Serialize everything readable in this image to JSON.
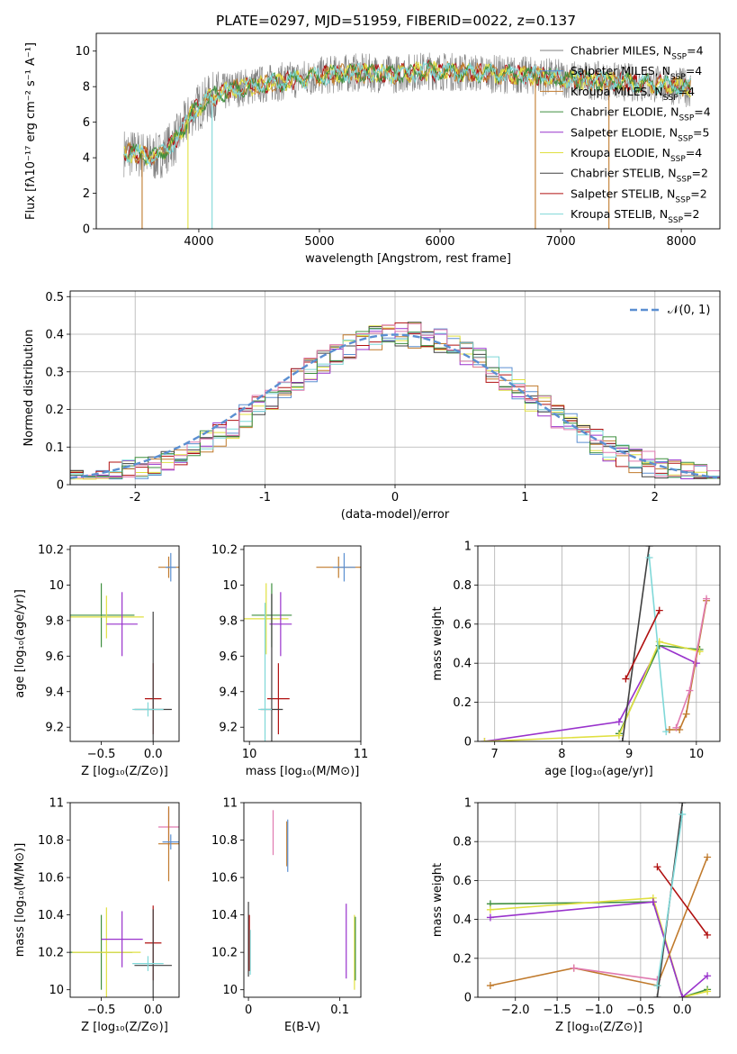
{
  "chart_data": [
    {
      "id": "spectrum",
      "type": "line",
      "title": "PLATE=0297, MJD=51959, FIBERID=0022, z=0.137",
      "xlabel": "wavelength [Angstrom, rest frame]",
      "ylabel": "Flux [fλ10⁻¹⁷ erg cm⁻² s⁻¹ A⁻¹]",
      "xlim": [
        3150,
        8320
      ],
      "ylim": [
        0,
        11
      ],
      "xticks": [
        4000,
        5000,
        6000,
        7000,
        8000
      ],
      "yticks": [
        0,
        2,
        4,
        6,
        8,
        10
      ],
      "legend_position": "top-right",
      "grid": false,
      "legend": [
        {
          "label": "Chabrier MILES, N_SSP=4",
          "color": "#7f7f7f"
        },
        {
          "label": "Salpeter MILES, N_SSP=4",
          "color": "#5b8fd1"
        },
        {
          "label": "Kroupa MILES, N_SSP=4",
          "color": "#c07a2c"
        },
        {
          "label": "Chabrier ELODIE, N_SSP=4",
          "color": "#3f8f3f"
        },
        {
          "label": "Salpeter ELODIE, N_SSP=5",
          "color": "#9932cc"
        },
        {
          "label": "Kroupa ELODIE, N_SSP=4",
          "color": "#e0e040"
        },
        {
          "label": "Chabrier STELIB, N_SSP=2",
          "color": "#404040"
        },
        {
          "label": "Salpeter STELIB, N_SSP=2",
          "color": "#b01010"
        },
        {
          "label": "Kroupa STELIB, N_SSP=2",
          "color": "#7fd8d8"
        }
      ],
      "continuum": {
        "x": [
          3380,
          3500,
          3650,
          3800,
          3950,
          4100,
          4300,
          4500,
          4700,
          5000,
          5300,
          5600,
          5900,
          6200,
          6500,
          6800,
          7100,
          7400,
          7700,
          8000,
          8080
        ],
        "y": [
          4.3,
          4.2,
          4.0,
          4.9,
          6.6,
          7.4,
          7.9,
          8.1,
          8.3,
          8.6,
          8.8,
          8.7,
          8.9,
          8.8,
          8.7,
          8.6,
          8.4,
          8.3,
          8.2,
          8.0,
          7.9
        ]
      },
      "absorption_lines": [
        {
          "x": 3530,
          "y": 0.0,
          "color": "#c07a2c"
        },
        {
          "x": 3910,
          "y": 0.0,
          "color": "#e0e040"
        },
        {
          "x": 4110,
          "y": 0.0,
          "color": "#7fd8d8"
        },
        {
          "x": 6790,
          "y": 0.0,
          "color": "#c07a2c"
        },
        {
          "x": 7400,
          "y": 0.0,
          "color": "#c07a2c"
        }
      ]
    },
    {
      "id": "residuals",
      "type": "line",
      "xlabel": "(data-model)/error",
      "ylabel": "Normed distribution",
      "xlim": [
        -2.5,
        2.5
      ],
      "ylim": [
        0,
        0.515
      ],
      "xticks": [
        -2,
        -1,
        0,
        1,
        2
      ],
      "yticks": [
        0.0,
        0.1,
        0.2,
        0.3,
        0.4,
        0.5
      ],
      "legend_position": "top-right",
      "grid": true,
      "legend": [
        {
          "label": "𝒩(0, 1)",
          "color": "#5b8fd1"
        }
      ],
      "hist_colors": [
        "#5b8fd1",
        "#c07a2c",
        "#e0e040",
        "#9932cc",
        "#b01010",
        "#404040",
        "#7fd8d8",
        "#3f8f3f",
        "#e07ab0"
      ]
    },
    {
      "id": "age_vs_Z",
      "type": "scatter",
      "xlabel": "Z [log₁₀(Z/Z⊙)]",
      "ylabel": "age [log₁₀(age/yr)]",
      "xlim": [
        -0.8,
        0.25
      ],
      "ylim": [
        9.12,
        10.22
      ],
      "xticks": [
        -0.5,
        0.0
      ],
      "xticklabels": [
        "−0.5",
        "0.0"
      ],
      "yticks": [
        9.2,
        9.4,
        9.6,
        9.8,
        10.0,
        10.2
      ],
      "grid": false,
      "points": [
        {
          "x": 0.15,
          "y": 10.1,
          "xerr": 0.1,
          "yerr": 0.06,
          "color": "#c07a2c"
        },
        {
          "x": 0.17,
          "y": 10.1,
          "xerr": 0.05,
          "yerr": 0.08,
          "color": "#5b8fd1"
        },
        {
          "x": -0.5,
          "y": 9.83,
          "xerr": 0.32,
          "yerr": 0.18,
          "color": "#3f8f3f"
        },
        {
          "x": -0.45,
          "y": 9.82,
          "xerr": 0.36,
          "yerr": 0.12,
          "color": "#e0e040"
        },
        {
          "x": -0.3,
          "y": 9.78,
          "xerr": 0.15,
          "yerr": 0.18,
          "color": "#9932cc"
        },
        {
          "x": 0.0,
          "y": 9.36,
          "xerr": 0.08,
          "yerr": 0.2,
          "color": "#b01010"
        },
        {
          "x": 0.0,
          "y": 9.3,
          "xerr": 0.18,
          "yerr": 0.55,
          "color": "#404040"
        },
        {
          "x": -0.05,
          "y": 9.3,
          "xerr": 0.15,
          "yerr": 0.04,
          "color": "#7fd8d8"
        }
      ]
    },
    {
      "id": "age_vs_mass",
      "type": "scatter",
      "xlabel": "mass [log₁₀(M/M⊙)]",
      "xlim": [
        9.95,
        11.0
      ],
      "ylim": [
        9.12,
        10.22
      ],
      "xticks": [
        10,
        11
      ],
      "yticks": [
        9.2,
        9.4,
        9.6,
        9.8,
        10.0,
        10.2
      ],
      "grid": false,
      "points": [
        {
          "x": 10.8,
          "y": 10.1,
          "xerr": 0.2,
          "yerr": 0.06,
          "color": "#c07a2c"
        },
        {
          "x": 10.85,
          "y": 10.1,
          "xerr": 0.1,
          "yerr": 0.08,
          "color": "#5b8fd1"
        },
        {
          "x": 10.2,
          "y": 9.83,
          "xerr": 0.18,
          "yerr": 0.18,
          "color": "#3f8f3f"
        },
        {
          "x": 10.15,
          "y": 9.81,
          "xerr": 0.2,
          "yerr": 0.2,
          "color": "#e0e040"
        },
        {
          "x": 10.28,
          "y": 9.78,
          "xerr": 0.1,
          "yerr": 0.18,
          "color": "#9932cc"
        },
        {
          "x": 10.26,
          "y": 9.36,
          "xerr": 0.1,
          "yerr": 0.2,
          "color": "#b01010"
        },
        {
          "x": 10.2,
          "y": 9.3,
          "xerr": 0.1,
          "yerr": 0.65,
          "color": "#404040"
        },
        {
          "x": 10.14,
          "y": 9.3,
          "xerr": 0.06,
          "yerr": 0.6,
          "color": "#7fd8d8"
        }
      ]
    },
    {
      "id": "weight_vs_age",
      "type": "line",
      "xlabel": "age [log₁₀(age/yr)]",
      "ylabel": "mass weight",
      "xlim": [
        6.75,
        10.35
      ],
      "ylim": [
        0,
        1
      ],
      "xticks": [
        7,
        8,
        9,
        10
      ],
      "yticks": [
        0.0,
        0.2,
        0.4,
        0.6,
        0.8,
        1.0
      ],
      "grid": true,
      "series": [
        {
          "color": "#9932cc",
          "x": [
            6.85,
            8.85,
            9.45,
            10.0
          ],
          "y": [
            0.0,
            0.1,
            0.49,
            0.4
          ]
        },
        {
          "color": "#3f8f3f",
          "x": [
            8.85,
            9.45,
            10.05
          ],
          "y": [
            0.04,
            0.49,
            0.47
          ]
        },
        {
          "color": "#e0e040",
          "x": [
            6.85,
            8.85,
            9.45,
            10.05
          ],
          "y": [
            0.0,
            0.03,
            0.51,
            0.46
          ]
        },
        {
          "color": "#404040",
          "x": [
            8.9,
            9.3
          ],
          "y": [
            0.0,
            1.0
          ]
        },
        {
          "color": "#7fd8d8",
          "x": [
            9.55,
            9.3
          ],
          "y": [
            0.05,
            0.94
          ]
        },
        {
          "color": "#b01010",
          "x": [
            8.95,
            9.45
          ],
          "y": [
            0.32,
            0.67
          ]
        },
        {
          "color": "#c07a2c",
          "x": [
            9.6,
            9.75,
            9.85,
            10.15
          ],
          "y": [
            0.06,
            0.06,
            0.14,
            0.72
          ]
        },
        {
          "color": "#e07ab0",
          "x": [
            9.7,
            9.9,
            10.15
          ],
          "y": [
            0.07,
            0.26,
            0.73
          ]
        }
      ]
    },
    {
      "id": "mass_vs_Z",
      "type": "scatter",
      "xlabel": "Z [log₁₀(Z/Z⊙)]",
      "ylabel": "mass [log₁₀(M/M⊙)]",
      "xlim": [
        -0.8,
        0.25
      ],
      "ylim": [
        9.96,
        11.0
      ],
      "xticks": [
        -0.5,
        0.0
      ],
      "xticklabels": [
        "−0.5",
        "0.0"
      ],
      "yticks": [
        10.0,
        10.2,
        10.4,
        10.6,
        10.8,
        11.0
      ],
      "grid": false,
      "points": [
        {
          "x": 0.15,
          "y": 10.87,
          "xerr": 0.1,
          "yerr": 0.1,
          "color": "#e07ab0"
        },
        {
          "x": 0.15,
          "y": 10.78,
          "xerr": 0.1,
          "yerr": 0.2,
          "color": "#c07a2c"
        },
        {
          "x": 0.17,
          "y": 10.79,
          "xerr": 0.08,
          "yerr": 0.04,
          "color": "#5b8fd1"
        },
        {
          "x": -0.5,
          "y": 10.2,
          "xerr": 0.3,
          "yerr": 0.2,
          "color": "#3f8f3f"
        },
        {
          "x": -0.45,
          "y": 10.2,
          "xerr": 0.33,
          "yerr": 0.24,
          "color": "#e0e040"
        },
        {
          "x": -0.3,
          "y": 10.27,
          "xerr": 0.2,
          "yerr": 0.15,
          "color": "#9932cc"
        },
        {
          "x": 0.0,
          "y": 10.25,
          "xerr": 0.08,
          "yerr": 0.2,
          "color": "#b01010"
        },
        {
          "x": 0.0,
          "y": 10.13,
          "xerr": 0.18,
          "yerr": 0.3,
          "color": "#404040"
        },
        {
          "x": -0.05,
          "y": 10.14,
          "xerr": 0.15,
          "yerr": 0.04,
          "color": "#7fd8d8"
        }
      ]
    },
    {
      "id": "mass_vs_ebv",
      "type": "scatter",
      "xlabel": "E(B-V)",
      "xlim": [
        -0.005,
        0.123
      ],
      "ylim": [
        9.96,
        11.0
      ],
      "xticks": [
        0.0,
        0.1
      ],
      "yticks": [
        10.0,
        10.2,
        10.4,
        10.6,
        10.8,
        11.0
      ],
      "grid": false,
      "points": [
        {
          "x": 0.027,
          "y": 10.84,
          "xerr": 0.0,
          "yerr": 0.12,
          "color": "#e07ab0"
        },
        {
          "x": 0.042,
          "y": 10.78,
          "xerr": 0.0,
          "yerr": 0.12,
          "color": "#c07a2c"
        },
        {
          "x": 0.043,
          "y": 10.77,
          "xerr": 0.0,
          "yerr": 0.14,
          "color": "#5b8fd1"
        },
        {
          "x": 0.0,
          "y": 10.27,
          "xerr": 0.0,
          "yerr": 0.2,
          "color": "#404040"
        },
        {
          "x": 0.001,
          "y": 10.25,
          "xerr": 0.0,
          "yerr": 0.15,
          "color": "#b01010"
        },
        {
          "x": 0.002,
          "y": 10.2,
          "xerr": 0.0,
          "yerr": 0.12,
          "color": "#7fd8d8"
        },
        {
          "x": 0.107,
          "y": 10.26,
          "xerr": 0.0,
          "yerr": 0.2,
          "color": "#9932cc"
        },
        {
          "x": 0.116,
          "y": 10.2,
          "xerr": 0.0,
          "yerr": 0.2,
          "color": "#e0e040"
        },
        {
          "x": 0.117,
          "y": 10.22,
          "xerr": 0.0,
          "yerr": 0.17,
          "color": "#3f8f3f"
        }
      ]
    },
    {
      "id": "weight_vs_Z",
      "type": "line",
      "xlabel": "Z [log₁₀(Z/Z⊙)]",
      "ylabel": "mass weight",
      "xlim": [
        -2.45,
        0.45
      ],
      "ylim": [
        0,
        1
      ],
      "xticks": [
        -2.0,
        -1.5,
        -1.0,
        -0.5,
        0.0
      ],
      "xticklabels": [
        "−2.0",
        "−1.5",
        "−1.0",
        "−0.5",
        "0.0"
      ],
      "yticks": [
        0.0,
        0.2,
        0.4,
        0.6,
        0.8,
        1.0
      ],
      "grid": true,
      "series": [
        {
          "color": "#3f8f3f",
          "x": [
            -2.3,
            -0.35,
            0.0,
            0.3
          ],
          "y": [
            0.48,
            0.49,
            0.0,
            0.04
          ]
        },
        {
          "color": "#e0e040",
          "x": [
            -2.3,
            -0.35,
            0.0,
            0.3
          ],
          "y": [
            0.45,
            0.51,
            0.0,
            0.03
          ]
        },
        {
          "color": "#9932cc",
          "x": [
            -2.3,
            -0.35,
            0.0,
            0.3
          ],
          "y": [
            0.41,
            0.49,
            0.0,
            0.11
          ]
        },
        {
          "color": "#c07a2c",
          "x": [
            -2.3,
            -1.3,
            -0.3,
            0.3
          ],
          "y": [
            0.06,
            0.15,
            0.06,
            0.72
          ]
        },
        {
          "color": "#e07ab0",
          "x": [
            -1.3,
            -0.3
          ],
          "y": [
            0.15,
            0.09
          ]
        },
        {
          "color": "#b01010",
          "x": [
            -0.3,
            0.3
          ],
          "y": [
            0.67,
            0.32
          ]
        },
        {
          "color": "#404040",
          "x": [
            -0.3,
            0.0
          ],
          "y": [
            0.0,
            1.0
          ]
        },
        {
          "color": "#7fd8d8",
          "x": [
            -0.3,
            0.0
          ],
          "y": [
            0.06,
            0.94
          ]
        }
      ]
    }
  ]
}
